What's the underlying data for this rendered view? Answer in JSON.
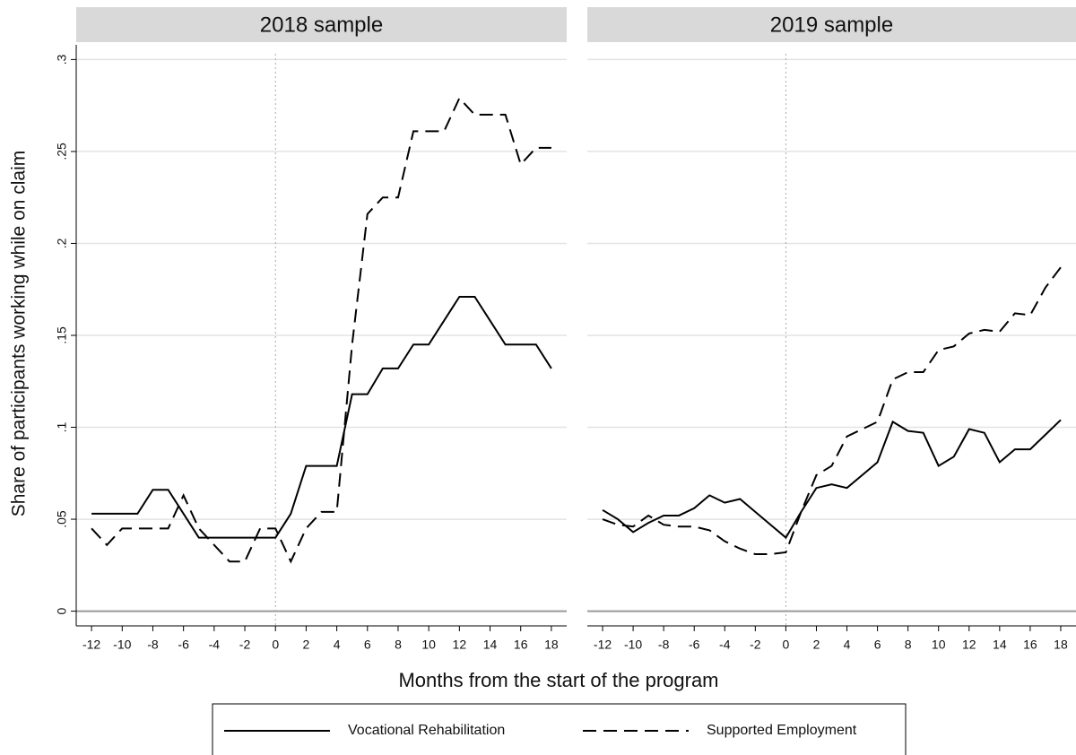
{
  "chart_data": {
    "type": "line",
    "xlabel": "Months from the start of the program",
    "ylabel": "Share of participants working while on claim",
    "x": [
      -12,
      -11,
      -10,
      -9,
      -8,
      -7,
      -6,
      -5,
      -4,
      -3,
      -2,
      -1,
      0,
      1,
      2,
      3,
      4,
      5,
      6,
      7,
      8,
      9,
      10,
      11,
      12,
      13,
      14,
      15,
      16,
      17,
      18
    ],
    "xlim": [
      -13,
      19
    ],
    "xticks": [
      -12,
      -10,
      -8,
      -6,
      -4,
      -2,
      0,
      2,
      4,
      6,
      8,
      10,
      12,
      14,
      16,
      18
    ],
    "ylim": [
      -0.008,
      0.308
    ],
    "yticks": [
      0,
      {
        "value": 0.05,
        "label": ".05"
      },
      {
        "value": 0.1,
        "label": ".1"
      },
      {
        "value": 0.15,
        "label": ".15"
      },
      {
        "value": 0.2,
        "label": ".2"
      },
      {
        "value": 0.25,
        "label": ".25"
      },
      {
        "value": 0.3,
        "label": ".3"
      }
    ],
    "grid": true,
    "vline": 0,
    "series": [
      {
        "name": "Vocational Rehabilitation",
        "color": "#000000",
        "dash": "solid"
      },
      {
        "name": "Supported Employment",
        "color": "#000000",
        "dash": "dashed"
      }
    ],
    "panels": [
      {
        "title": "2018 sample",
        "values": [
          [
            0.053,
            0.053,
            0.053,
            0.053,
            0.066,
            0.066,
            0.053,
            0.04,
            0.04,
            0.04,
            0.04,
            0.04,
            0.04,
            0.053,
            0.079,
            0.079,
            0.079,
            0.118,
            0.118,
            0.132,
            0.132,
            0.145,
            0.145,
            0.158,
            0.171,
            0.171,
            0.158,
            0.145,
            0.145,
            0.145,
            0.132
          ],
          [
            0.045,
            0.036,
            0.045,
            0.045,
            0.045,
            0.045,
            0.063,
            0.045,
            0.036,
            0.027,
            0.027,
            0.045,
            0.045,
            0.027,
            0.045,
            0.054,
            0.054,
            0.145,
            0.216,
            0.225,
            0.225,
            0.261,
            0.261,
            0.261,
            0.279,
            0.27,
            0.27,
            0.27,
            0.243,
            0.252,
            0.252
          ]
        ]
      },
      {
        "title": "2019 sample",
        "values": [
          [
            0.055,
            0.05,
            0.043,
            0.048,
            0.052,
            0.052,
            0.056,
            0.063,
            0.059,
            0.061,
            0.054,
            0.047,
            0.04,
            0.054,
            0.067,
            0.069,
            0.067,
            0.074,
            0.081,
            0.103,
            0.098,
            0.097,
            0.079,
            0.084,
            0.099,
            0.097,
            0.081,
            0.088,
            0.088,
            0.096,
            0.104
          ],
          [
            0.05,
            0.047,
            0.046,
            0.052,
            0.047,
            0.046,
            0.046,
            0.044,
            0.038,
            0.034,
            0.031,
            0.031,
            0.032,
            0.054,
            0.074,
            0.079,
            0.095,
            0.099,
            0.103,
            0.126,
            0.13,
            0.13,
            0.142,
            0.144,
            0.151,
            0.153,
            0.152,
            0.162,
            0.161,
            0.176,
            0.187
          ]
        ]
      }
    ]
  }
}
